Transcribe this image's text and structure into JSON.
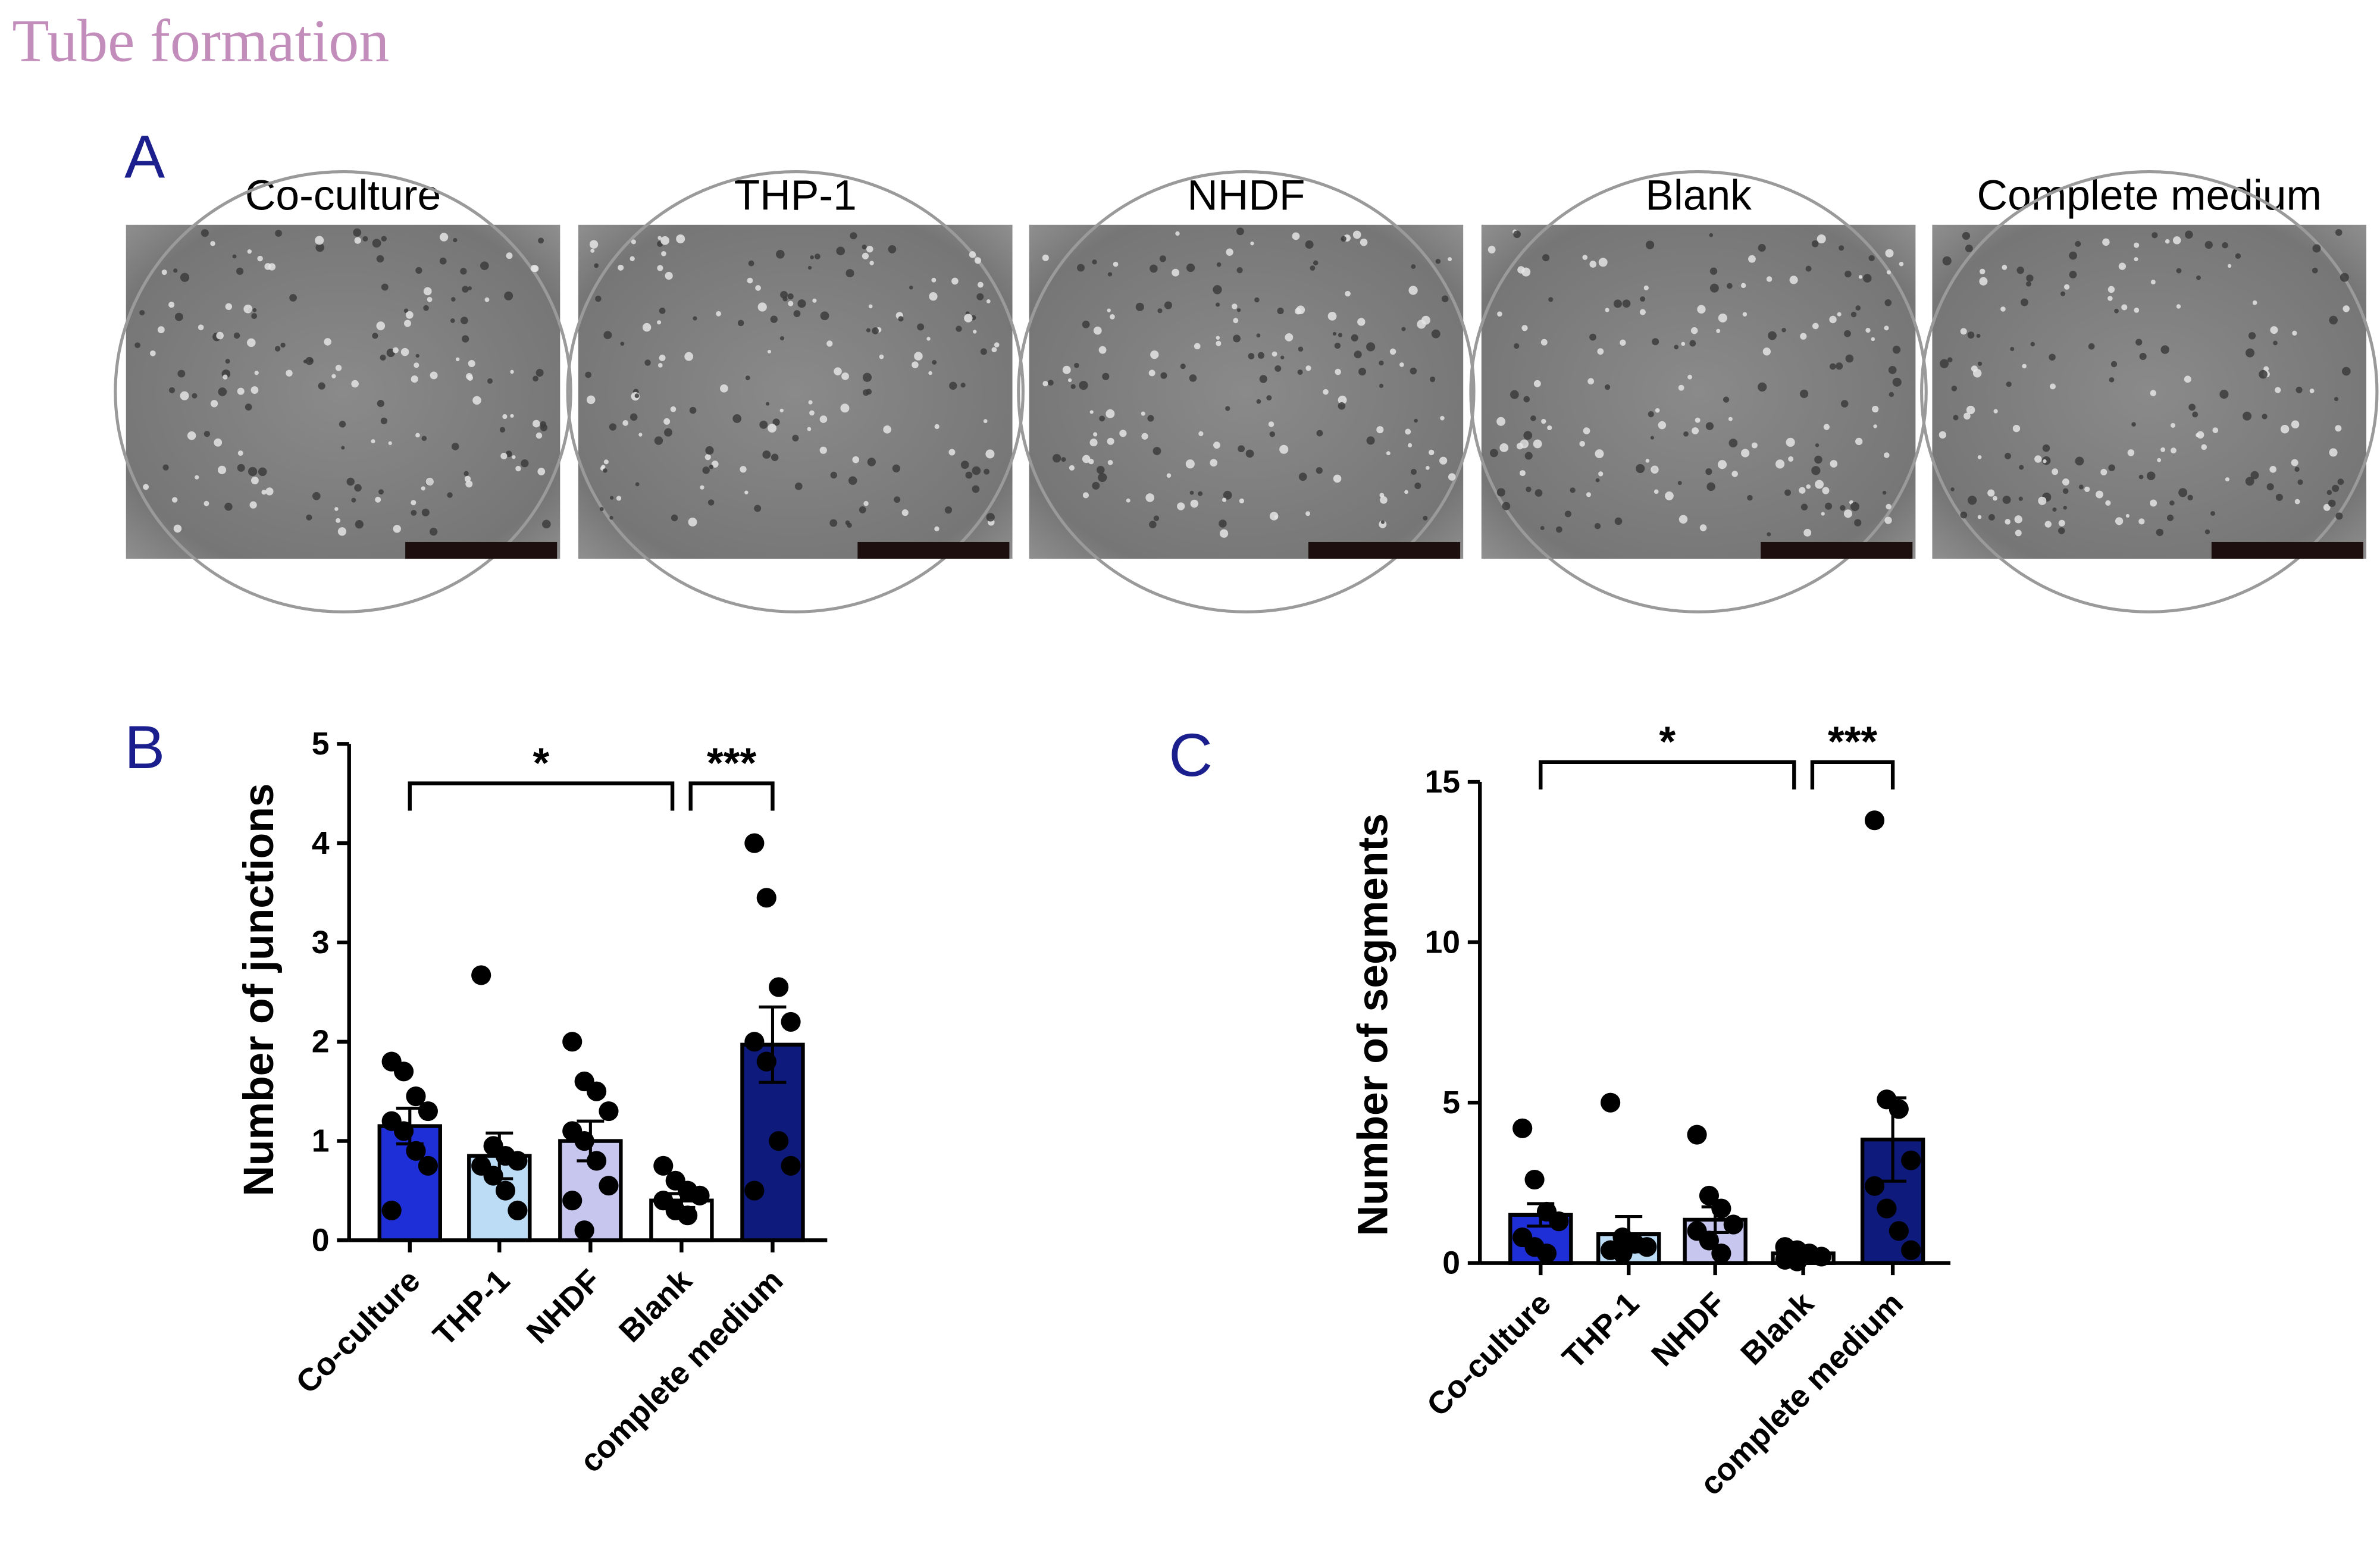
{
  "figure": {
    "title": "Tube formation",
    "panel_labels": [
      "A",
      "B",
      "C"
    ],
    "image_labels": [
      "Co-culture",
      "THP-1",
      "NHDF",
      "Blank",
      "Complete medium"
    ]
  },
  "chart_data": [
    {
      "type": "bar",
      "ylabel": "Number of junctions",
      "categories": [
        "Co-culture",
        "THP-1",
        "NHDF",
        "Blank",
        "complete medium"
      ],
      "values": [
        1.15,
        0.85,
        1.0,
        0.4,
        1.97
      ],
      "errors": [
        0.18,
        0.23,
        0.2,
        0.07,
        0.38
      ],
      "points": [
        [
          1.8,
          1.7,
          1.45,
          1.3,
          1.2,
          1.1,
          0.9,
          0.75,
          0.3
        ],
        [
          2.67,
          0.95,
          0.85,
          0.8,
          0.75,
          0.65,
          0.5,
          0.3
        ],
        [
          2.0,
          1.6,
          1.5,
          1.3,
          1.1,
          1.0,
          0.8,
          0.55,
          0.4,
          0.1
        ],
        [
          0.75,
          0.6,
          0.5,
          0.45,
          0.4,
          0.3,
          0.25
        ],
        [
          4.0,
          3.45,
          2.55,
          2.2,
          2.0,
          1.8,
          1.0,
          0.75,
          0.5
        ]
      ],
      "colors": [
        "#1f2fd8",
        "#bcdcf6",
        "#c6c6ee",
        "#ffffff",
        "#0e1a7c"
      ],
      "ylim": [
        0,
        5
      ],
      "yticks": [
        0,
        1,
        2,
        3,
        4,
        5
      ],
      "annotations": [
        {
          "text": "*",
          "between": [
            "Co-culture",
            "Blank"
          ]
        },
        {
          "text": "***",
          "between": [
            "Blank",
            "complete medium"
          ]
        }
      ]
    },
    {
      "type": "bar",
      "ylabel": "Number of segments",
      "categories": [
        "Co-culture",
        "THP-1",
        "NHDF",
        "Blank",
        "complete medium"
      ],
      "values": [
        1.5,
        0.9,
        1.35,
        0.3,
        3.85
      ],
      "errors": [
        0.35,
        0.55,
        0.4,
        0.05,
        1.3
      ],
      "points": [
        [
          4.2,
          2.6,
          1.6,
          1.3,
          0.8,
          0.5,
          0.3
        ],
        [
          5.0,
          0.8,
          0.6,
          0.5,
          0.4,
          0.3
        ],
        [
          4.0,
          2.1,
          1.7,
          1.2,
          1.0,
          0.7,
          0.3
        ],
        [
          0.5,
          0.4,
          0.3,
          0.2,
          0.1,
          0.05
        ],
        [
          13.8,
          5.1,
          4.8,
          3.2,
          2.4,
          1.7,
          1.0,
          0.4
        ]
      ],
      "colors": [
        "#1f2fd8",
        "#bcdcf6",
        "#c6c6ee",
        "#ffffff",
        "#0e1a7c"
      ],
      "ylim": [
        0,
        15
      ],
      "yticks": [
        0,
        5,
        10,
        15
      ],
      "annotations": [
        {
          "text": "*",
          "between": [
            "Co-culture",
            "Blank"
          ]
        },
        {
          "text": "***",
          "between": [
            "Blank",
            "complete medium"
          ]
        }
      ]
    }
  ]
}
